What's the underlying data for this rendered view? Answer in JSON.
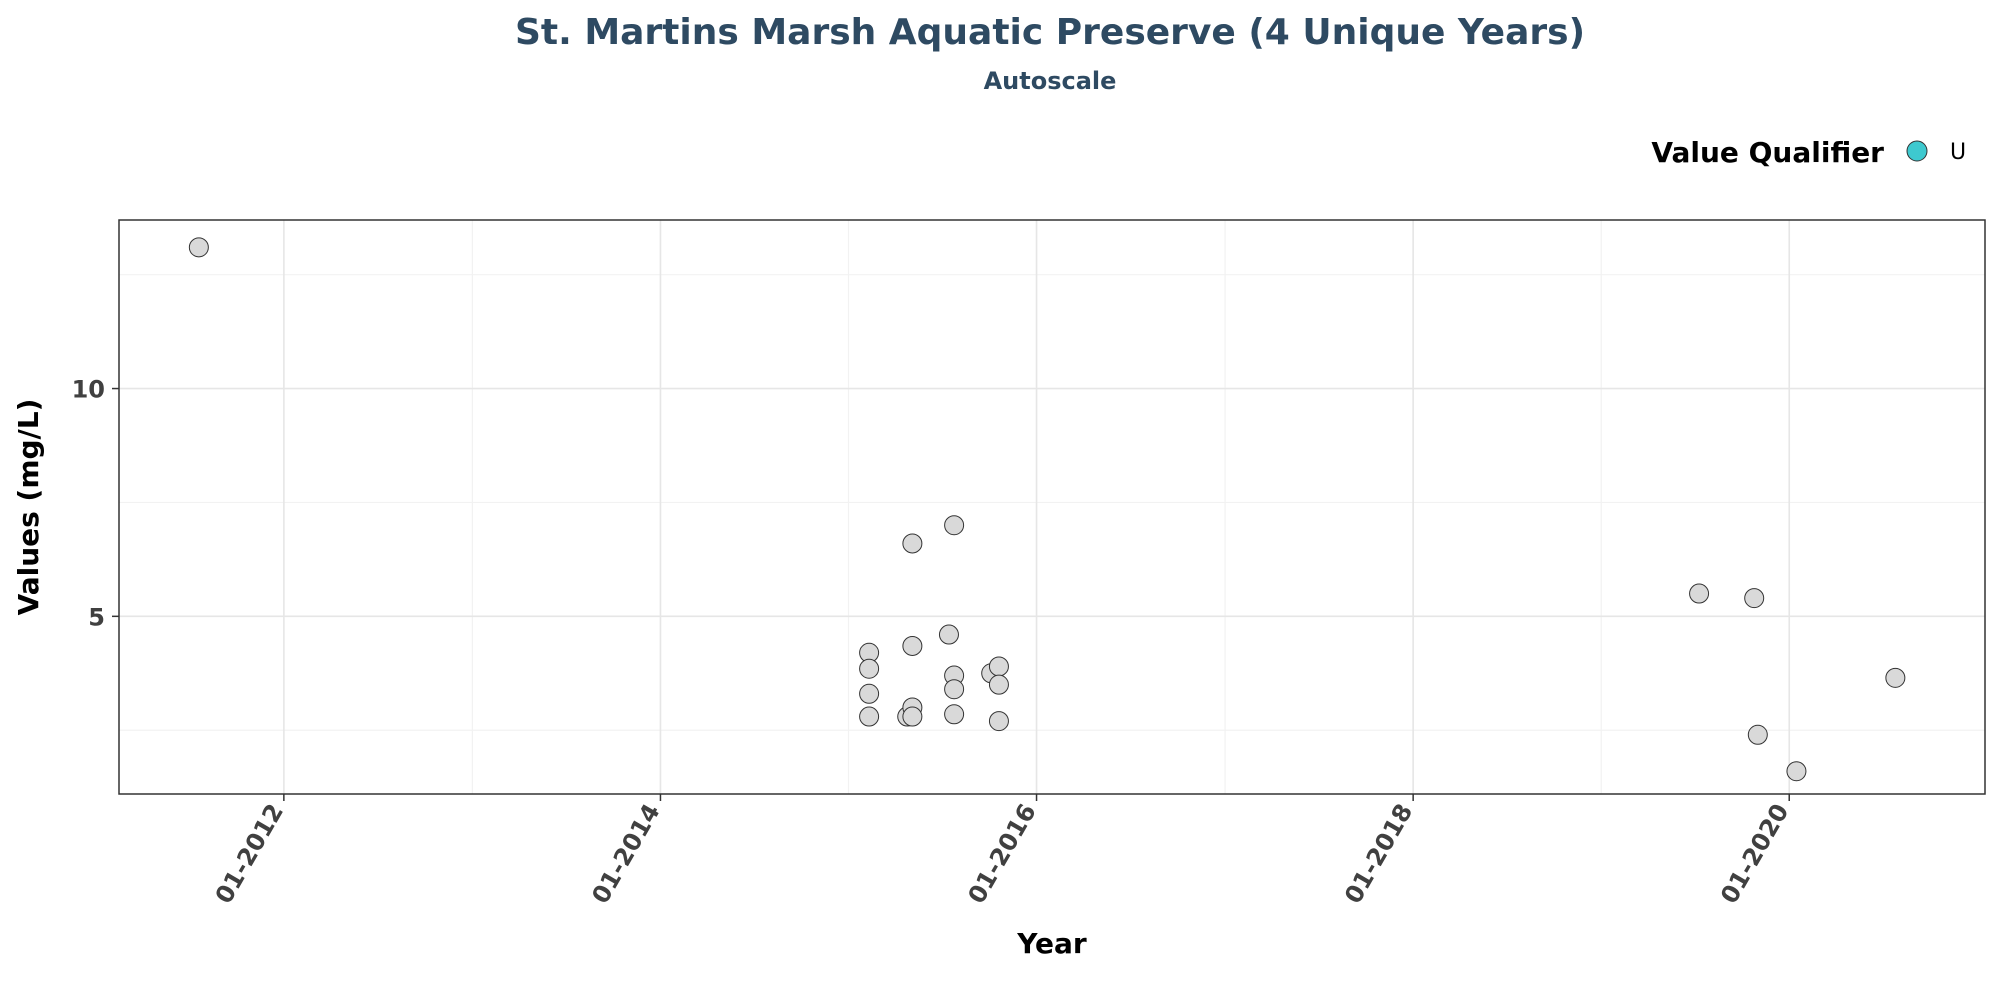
{
  "chart_data": {
    "type": "scatter",
    "title": "St. Martins Marsh Aquatic Preserve (4 Unique Years)",
    "subtitle": "Autoscale",
    "xlabel": "Year",
    "ylabel": "Values (mg/L)",
    "x_ticks": [
      "2012-01-01",
      "2014-01-01",
      "2016-01-01",
      "2018-01-01",
      "2020-01-01"
    ],
    "x_tick_labels": [
      "01-2012",
      "01-2014",
      "01-2016",
      "01-2018",
      "01-2020"
    ],
    "x_minor_ticks": [
      "2013-01-01",
      "2015-01-01",
      "2017-01-01",
      "2019-01-01"
    ],
    "xlim": [
      "2011-02-15",
      "2021-01-15"
    ],
    "y_ticks": [
      5,
      10
    ],
    "y_minor_ticks": [
      2.5,
      7.5,
      12.5
    ],
    "ylim": [
      1.1,
      13.7
    ],
    "grid": true,
    "legend": {
      "title": "Value Qualifier",
      "position": "top-right",
      "entries": [
        {
          "label": "U",
          "color": "#3ec9cf"
        }
      ]
    },
    "marker_fill": "#d9d9d9",
    "marker_stroke": "#333333",
    "points": [
      {
        "x": "2011-07-20",
        "y": 13.1
      },
      {
        "x": "2015-02-10",
        "y": 4.2
      },
      {
        "x": "2015-02-10",
        "y": 3.85
      },
      {
        "x": "2015-02-10",
        "y": 3.3
      },
      {
        "x": "2015-02-10",
        "y": 2.8
      },
      {
        "x": "2015-04-25",
        "y": 2.8
      },
      {
        "x": "2015-05-05",
        "y": 6.6
      },
      {
        "x": "2015-05-05",
        "y": 4.35
      },
      {
        "x": "2015-05-05",
        "y": 3.0
      },
      {
        "x": "2015-05-05",
        "y": 2.8
      },
      {
        "x": "2015-07-15",
        "y": 4.6
      },
      {
        "x": "2015-07-25",
        "y": 7.0
      },
      {
        "x": "2015-07-25",
        "y": 3.7
      },
      {
        "x": "2015-07-25",
        "y": 3.4
      },
      {
        "x": "2015-07-25",
        "y": 2.85
      },
      {
        "x": "2015-10-05",
        "y": 3.75
      },
      {
        "x": "2015-10-20",
        "y": 3.9
      },
      {
        "x": "2015-10-20",
        "y": 3.5
      },
      {
        "x": "2015-10-20",
        "y": 2.7
      },
      {
        "x": "2019-07-10",
        "y": 5.5
      },
      {
        "x": "2019-10-25",
        "y": 5.4
      },
      {
        "x": "2019-11-01",
        "y": 2.4
      },
      {
        "x": "2020-01-15",
        "y": 1.6
      },
      {
        "x": "2020-07-25",
        "y": 3.65
      }
    ]
  }
}
